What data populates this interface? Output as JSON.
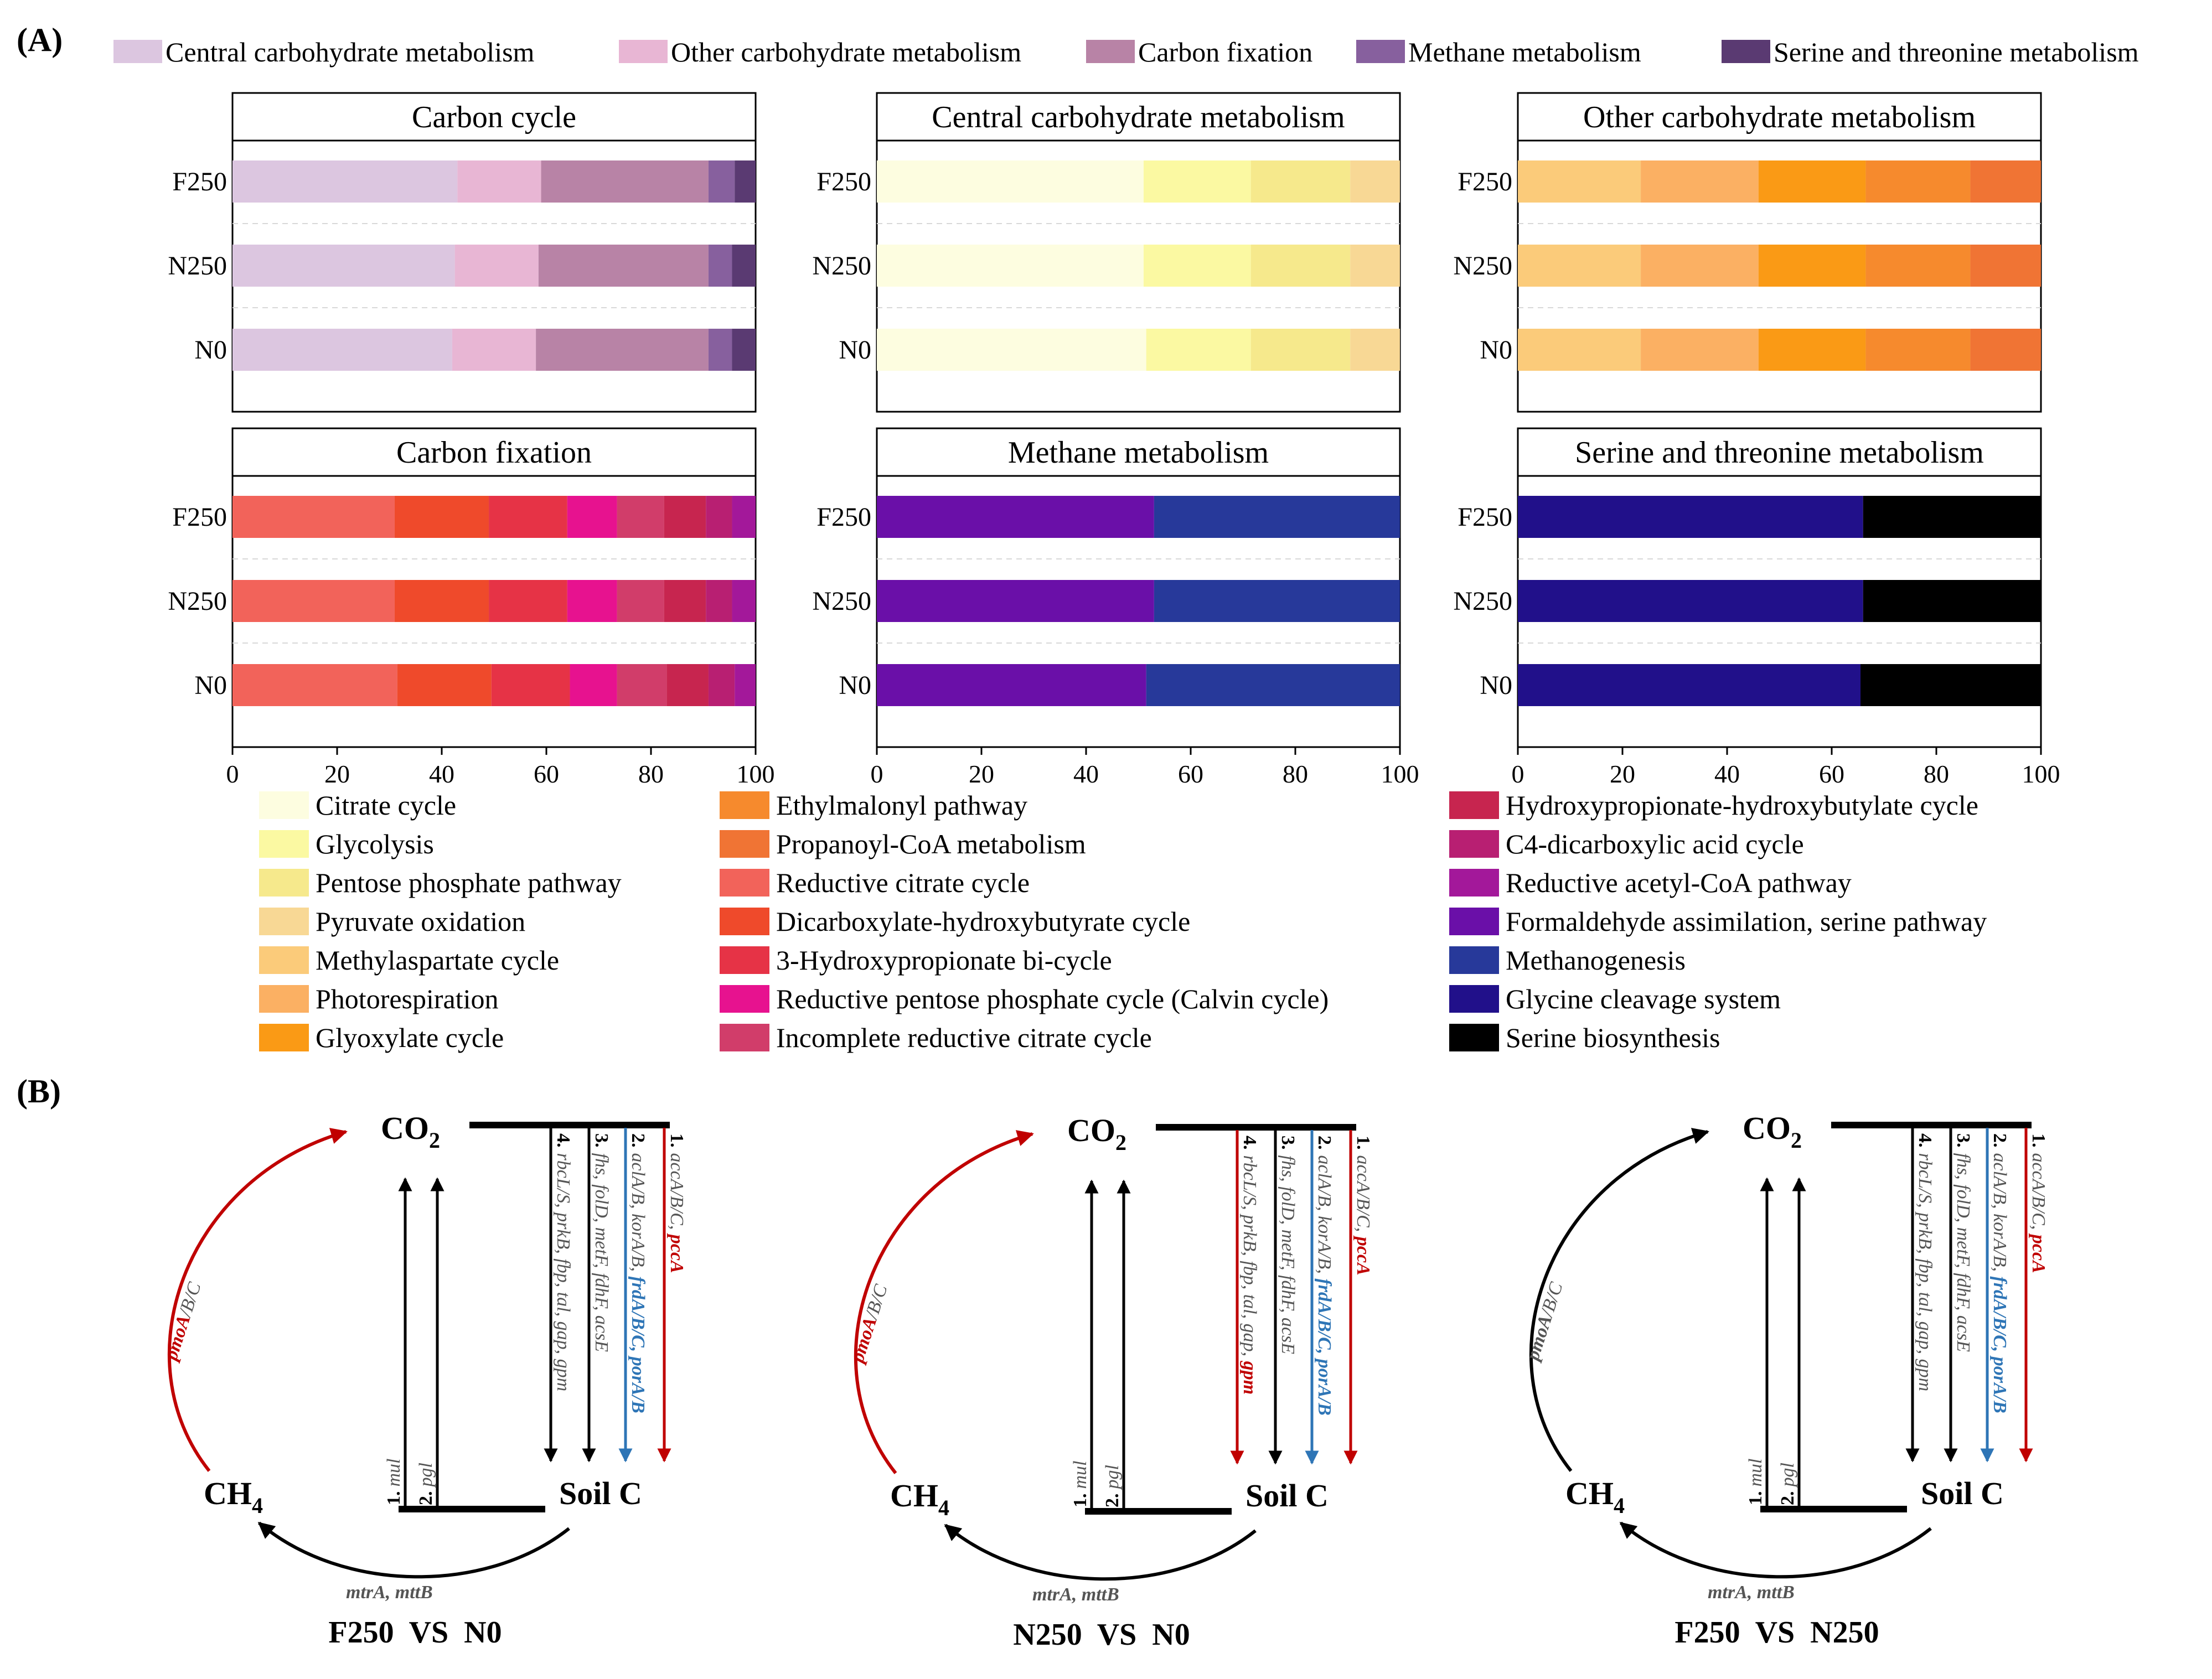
{
  "figure": {
    "panel_a_label": "(A)",
    "panel_b_label": "(B)"
  },
  "top_legend": [
    {
      "label": "Central carbohydrate metabolism",
      "color": "#dcc6e0"
    },
    {
      "label": "Other carbohydrate metabolism",
      "color": "#e8b6d4"
    },
    {
      "label": "Carbon fixation",
      "color": "#b883a6"
    },
    {
      "label": "Methane metabolism",
      "color": "#87609e"
    },
    {
      "label": "Serine and threonine metabolism",
      "color": "#5a3a72"
    }
  ],
  "chart_data": [
    {
      "type": "bar",
      "orientation": "horizontal",
      "stacked": true,
      "title": "Carbon cycle",
      "categories": [
        "F250",
        "N250",
        "N0"
      ],
      "xlim": [
        0,
        100
      ],
      "xticks": [
        0,
        20,
        40,
        60,
        80,
        100
      ],
      "series": [
        {
          "name": "Central carbohydrate metabolism",
          "color": "#dcc6e0",
          "values": [
            43,
            42.5,
            42
          ]
        },
        {
          "name": "Other carbohydrate metabolism",
          "color": "#e8b6d4",
          "values": [
            16,
            16,
            16
          ]
        },
        {
          "name": "Carbon fixation",
          "color": "#b883a6",
          "values": [
            32,
            32.5,
            33
          ]
        },
        {
          "name": "Methane metabolism",
          "color": "#87609e",
          "values": [
            5,
            4.5,
            4.5
          ]
        },
        {
          "name": "Serine and threonine metabolism",
          "color": "#5a3a72",
          "values": [
            4,
            4.5,
            4.5
          ]
        }
      ]
    },
    {
      "type": "bar",
      "orientation": "horizontal",
      "stacked": true,
      "title": "Central carbohydrate metabolism",
      "categories": [
        "F250",
        "N250",
        "N0"
      ],
      "xlim": [
        0,
        100
      ],
      "xticks": [
        0,
        20,
        40,
        60,
        80,
        100
      ],
      "series": [
        {
          "name": "Citrate cycle",
          "color": "#fdfde0",
          "values": [
            51,
            51,
            51.5
          ]
        },
        {
          "name": "Glycolysis",
          "color": "#fbf9a2",
          "values": [
            20.5,
            20.5,
            20
          ]
        },
        {
          "name": "Pentose phosphate pathway",
          "color": "#f6e98c",
          "values": [
            19,
            19,
            19
          ]
        },
        {
          "name": "Pyruvate oxidation",
          "color": "#f8d895",
          "values": [
            9.5,
            9.5,
            9.5
          ]
        }
      ]
    },
    {
      "type": "bar",
      "orientation": "horizontal",
      "stacked": true,
      "title": "Other carbohydrate metabolism",
      "categories": [
        "F250",
        "N250",
        "N0"
      ],
      "xlim": [
        0,
        100
      ],
      "xticks": [
        0,
        20,
        40,
        60,
        80,
        100
      ],
      "series": [
        {
          "name": "Methylaspartate cycle",
          "color": "#fbcb7a",
          "values": [
            23.5,
            23.5,
            23.5
          ]
        },
        {
          "name": "Photorespiration",
          "color": "#fbb063",
          "values": [
            22.5,
            22.5,
            22.5
          ]
        },
        {
          "name": "Glyoxylate cycle",
          "color": "#fa9a15",
          "values": [
            20.5,
            20.5,
            20.5
          ]
        },
        {
          "name": "Ethylmalonyl pathway",
          "color": "#f68a2d",
          "values": [
            20,
            20,
            20
          ]
        },
        {
          "name": "Propanoyl-CoA metabolism",
          "color": "#f07434",
          "values": [
            13.5,
            13.5,
            13.5
          ]
        }
      ]
    },
    {
      "type": "bar",
      "orientation": "horizontal",
      "stacked": true,
      "title": "Carbon fixation",
      "categories": [
        "F250",
        "N250",
        "N0"
      ],
      "xlim": [
        0,
        100
      ],
      "xticks": [
        0,
        20,
        40,
        60,
        80,
        100
      ],
      "series": [
        {
          "name": "Reductive citrate cycle",
          "color": "#f2635a",
          "values": [
            31,
            31,
            31.5
          ]
        },
        {
          "name": "Dicarboxylate-hydroxybutyrate cycle",
          "color": "#ef4a2b",
          "values": [
            18,
            18,
            18
          ]
        },
        {
          "name": "3-Hydroxypropionate bi-cycle",
          "color": "#e63346",
          "values": [
            15,
            15,
            15
          ]
        },
        {
          "name": "Reductive pentose phosphate cycle (Calvin cycle)",
          "color": "#e7128f",
          "values": [
            9.5,
            9.5,
            9
          ]
        },
        {
          "name": "Incomplete reductive citrate cycle",
          "color": "#d13d6a",
          "values": [
            9,
            9,
            9.5
          ]
        },
        {
          "name": "Hydroxypropionate-hydroxybutylate cycle",
          "color": "#c7254f",
          "values": [
            8,
            8,
            8
          ]
        },
        {
          "name": "C4-dicarboxylic acid cycle",
          "color": "#b81f72",
          "values": [
            5,
            5,
            5
          ]
        },
        {
          "name": "Reductive acetyl-CoA pathway",
          "color": "#a3189a",
          "values": [
            4.5,
            4.5,
            4
          ]
        }
      ]
    },
    {
      "type": "bar",
      "orientation": "horizontal",
      "stacked": true,
      "title": "Methane metabolism",
      "categories": [
        "F250",
        "N250",
        "N0"
      ],
      "xlim": [
        0,
        100
      ],
      "xticks": [
        0,
        20,
        40,
        60,
        80,
        100
      ],
      "series": [
        {
          "name": "Formaldehyde assimilation, serine pathway",
          "color": "#6a0fa8",
          "values": [
            53,
            53,
            51.5
          ]
        },
        {
          "name": "Methanogenesis",
          "color": "#27399a",
          "values": [
            47,
            47,
            48.5
          ]
        }
      ]
    },
    {
      "type": "bar",
      "orientation": "horizontal",
      "stacked": true,
      "title": "Serine and threonine metabolism",
      "categories": [
        "F250",
        "N250",
        "N0"
      ],
      "xlim": [
        0,
        100
      ],
      "xticks": [
        0,
        20,
        40,
        60,
        80,
        100
      ],
      "series": [
        {
          "name": "Glycine cleavage system",
          "color": "#21108a",
          "values": [
            66,
            66,
            65.5
          ]
        },
        {
          "name": "Serine biosynthesis",
          "color": "#000000",
          "values": [
            34,
            34,
            34.5
          ]
        }
      ]
    }
  ],
  "bottom_legend": [
    [
      {
        "label": "Citrate cycle",
        "color": "#fdfde0"
      },
      {
        "label": "Glycolysis",
        "color": "#fbf9a2"
      },
      {
        "label": "Pentose phosphate pathway",
        "color": "#f6e98c"
      },
      {
        "label": "Pyruvate oxidation",
        "color": "#f8d895"
      },
      {
        "label": "Methylaspartate cycle",
        "color": "#fbcb7a"
      },
      {
        "label": "Photorespiration",
        "color": "#fbb063"
      },
      {
        "label": "Glyoxylate cycle",
        "color": "#fa9a15"
      }
    ],
    [
      {
        "label": "Ethylmalonyl pathway",
        "color": "#f68a2d"
      },
      {
        "label": "Propanoyl-CoA metabolism",
        "color": "#f07434"
      },
      {
        "label": "Reductive citrate cycle",
        "color": "#f2635a"
      },
      {
        "label": "Dicarboxylate-hydroxybutyrate cycle",
        "color": "#ef4a2b"
      },
      {
        "label": "3-Hydroxypropionate bi-cycle",
        "color": "#e63346"
      },
      {
        "label": "Reductive pentose phosphate cycle (Calvin cycle)",
        "color": "#e7128f"
      },
      {
        "label": "Incomplete reductive citrate cycle",
        "color": "#d13d6a"
      }
    ],
    [
      {
        "label": "Hydroxypropionate-hydroxybutylate cycle",
        "color": "#c7254f"
      },
      {
        "label": "C4-dicarboxylic acid cycle",
        "color": "#b81f72"
      },
      {
        "label": "Reductive acetyl-CoA pathway",
        "color": "#a3189a"
      },
      {
        "label": "Formaldehyde assimilation, serine pathway",
        "color": "#6a0fa8"
      },
      {
        "label": "Methanogenesis",
        "color": "#27399a"
      },
      {
        "label": "Glycine cleavage system",
        "color": "#21108a"
      },
      {
        "label": "Serine biosynthesis",
        "color": "#000000"
      }
    ]
  ],
  "diagrams": [
    {
      "comparison": "F250  VS  N0",
      "co2_sub": "2",
      "ch4_sub": "4",
      "methane_oxidation": {
        "gene": "pmoA",
        "suffix": "/B/C",
        "gene_color": "#c00000",
        "arrow_color": "#c00000"
      },
      "methanogenesis": {
        "label": "mtrA, mttB",
        "arrow_color": "#000000"
      },
      "release_paths": [
        {
          "num": "1.",
          "label": "mul",
          "color": "#000000"
        },
        {
          "num": "2.",
          "label": "pgl",
          "color": "#000000"
        }
      ],
      "fixation_paths": [
        {
          "num": "1.",
          "parts": [
            {
              "t": "accA/B/C, ",
              "c": "#555555"
            },
            {
              "t": "pccA",
              "c": "#c00000"
            }
          ],
          "arrow_color": "#c00000"
        },
        {
          "num": "2.",
          "parts": [
            {
              "t": "aclA/B, korA/B, ",
              "c": "#555555"
            },
            {
              "t": "frdA/B/C, porA/B",
              "c": "#2e75b6"
            }
          ],
          "arrow_color": "#2e75b6"
        },
        {
          "num": "3.",
          "parts": [
            {
              "t": "fhs, folD, metF, fdhF, acsE",
              "c": "#555555"
            }
          ],
          "arrow_color": "#000000"
        },
        {
          "num": "4.",
          "parts": [
            {
              "t": "rbcL/S, prkB, fbp, tal, gap, gpm",
              "c": "#555555"
            }
          ],
          "arrow_color": "#000000"
        }
      ]
    },
    {
      "comparison": "N250  VS  N0",
      "co2_sub": "2",
      "ch4_sub": "4",
      "methane_oxidation": {
        "gene": "pmoA",
        "suffix": "/B/C",
        "gene_color": "#c00000",
        "arrow_color": "#c00000"
      },
      "methanogenesis": {
        "label": "mtrA, mttB",
        "arrow_color": "#000000"
      },
      "release_paths": [
        {
          "num": "1.",
          "label": "mul",
          "color": "#000000"
        },
        {
          "num": "2.",
          "label": "pgl",
          "color": "#000000"
        }
      ],
      "fixation_paths": [
        {
          "num": "1.",
          "parts": [
            {
              "t": "accA/B/C, ",
              "c": "#555555"
            },
            {
              "t": "pccA",
              "c": "#c00000"
            }
          ],
          "arrow_color": "#c00000"
        },
        {
          "num": "2.",
          "parts": [
            {
              "t": "aclA/B, korA/B, ",
              "c": "#555555"
            },
            {
              "t": "frdA/B/C, porA/B",
              "c": "#2e75b6"
            }
          ],
          "arrow_color": "#2e75b6"
        },
        {
          "num": "3.",
          "parts": [
            {
              "t": "fhs, folD, metF, fdhF, acsE",
              "c": "#555555"
            }
          ],
          "arrow_color": "#000000"
        },
        {
          "num": "4.",
          "parts": [
            {
              "t": "rbcL/S, prkB, fbp, tal, gap, ",
              "c": "#555555"
            },
            {
              "t": "gpm",
              "c": "#c00000"
            }
          ],
          "arrow_color": "#c00000"
        }
      ]
    },
    {
      "comparison": "F250  VS  N250",
      "co2_sub": "2",
      "ch4_sub": "4",
      "methane_oxidation": {
        "gene": "pmoA",
        "suffix": "/B/C",
        "gene_color": "#555555",
        "arrow_color": "#000000"
      },
      "methanogenesis": {
        "label": "mtrA, mttB",
        "arrow_color": "#000000"
      },
      "release_paths": [
        {
          "num": "1.",
          "label": "mul",
          "color": "#000000"
        },
        {
          "num": "2.",
          "label": "pgl",
          "color": "#000000"
        }
      ],
      "fixation_paths": [
        {
          "num": "1.",
          "parts": [
            {
              "t": "accA/B/C, ",
              "c": "#555555"
            },
            {
              "t": "pccA",
              "c": "#c00000"
            }
          ],
          "arrow_color": "#c00000"
        },
        {
          "num": "2.",
          "parts": [
            {
              "t": "aclA/B, korA/B, ",
              "c": "#555555"
            },
            {
              "t": "frdA/B/C, porA/B",
              "c": "#2e75b6"
            }
          ],
          "arrow_color": "#2e75b6"
        },
        {
          "num": "3.",
          "parts": [
            {
              "t": "fhs, folD, metF, fdhF, acsE",
              "c": "#555555"
            }
          ],
          "arrow_color": "#000000"
        },
        {
          "num": "4.",
          "parts": [
            {
              "t": "rbcL/S, prkB, fbp, tal, gap, gpm",
              "c": "#555555"
            }
          ],
          "arrow_color": "#000000"
        }
      ]
    }
  ]
}
